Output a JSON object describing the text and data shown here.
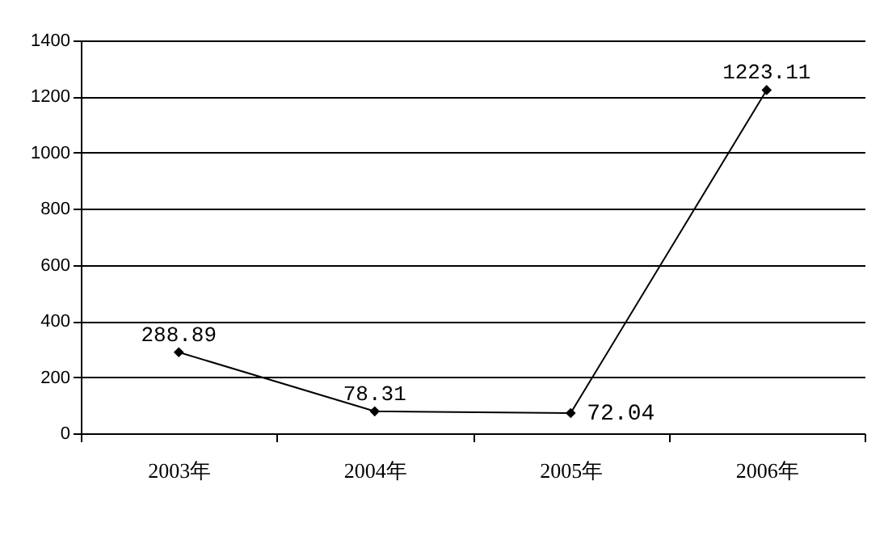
{
  "chart_data": {
    "type": "line",
    "categories": [
      "2003年",
      "2004年",
      "2005年",
      "2006年"
    ],
    "series": [
      {
        "color": "#000000",
        "values": [
          288.89,
          78.31,
          72.04,
          1223.11
        ]
      }
    ],
    "ylim": [
      0,
      1400
    ],
    "yticks": [
      0,
      200,
      400,
      600,
      800,
      1000,
      1200,
      1400
    ],
    "grid": "y",
    "marker": "diamond",
    "line_style": "solid",
    "data_labels": true
  }
}
